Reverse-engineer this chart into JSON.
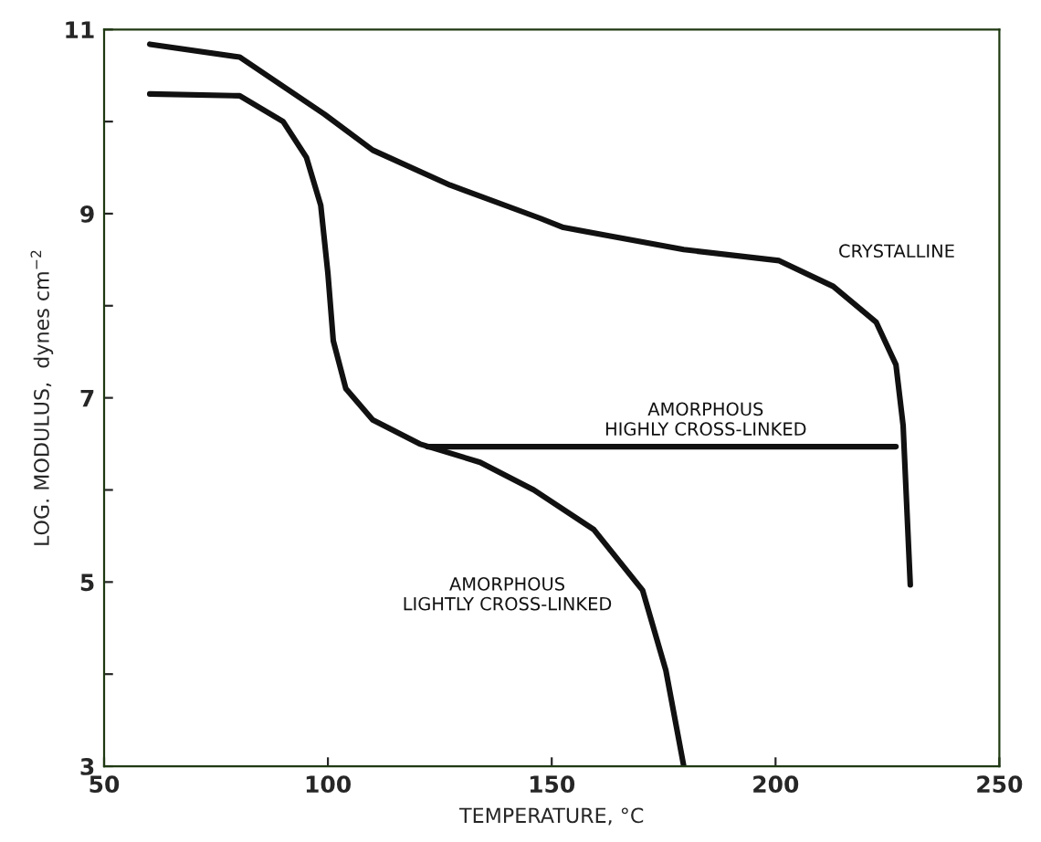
{
  "chart_data": {
    "type": "line",
    "xlabel": "TEMPERATURE, °C",
    "ylabel": "LOG. MODULUS,  dynes cm$^{−2}$",
    "series": [
      {
        "name": "CRYSTALLINE",
        "color": "#111111",
        "x": [
          60.2,
          80.3,
          99.2,
          110,
          127.3,
          147.4,
          152.6,
          179.5,
          200.8,
          212.9,
          222.5,
          226.9,
          228.5,
          230.1
        ],
        "values": [
          10.84,
          10.7,
          10.08,
          9.69,
          9.31,
          8.95,
          8.85,
          8.61,
          8.49,
          8.21,
          7.82,
          7.36,
          6.7,
          4.97
        ]
      },
      {
        "name": "AMORPHOUS\nHIGHLY CROSS-LINKED",
        "color": "#111111",
        "x": [
          122.2,
          226.9
        ],
        "values": [
          6.47,
          6.47
        ]
      },
      {
        "name": "AMORPHOUS\nLIGHTLY CROSS-LINKED",
        "color": "#111111",
        "x": [
          60.2,
          80.3,
          90,
          95.2,
          98.4,
          100,
          101.2,
          104,
          110,
          120.5,
          134,
          146,
          159.4,
          170.3,
          175.5,
          179.5
        ],
        "values": [
          10.3,
          10.28,
          10.0,
          9.61,
          9.09,
          8.35,
          7.62,
          7.1,
          6.76,
          6.5,
          6.3,
          6.0,
          5.57,
          4.91,
          4.04,
          3.0
        ]
      }
    ],
    "xlim": [
      50,
      250
    ],
    "ylim": [
      3,
      11
    ],
    "xticks": [
      50,
      100,
      150,
      200,
      250
    ],
    "yticks": [
      3,
      {
        "value": 4,
        "label": null
      },
      5,
      {
        "value": 6,
        "label": null
      },
      7,
      {
        "value": 8,
        "label": null
      },
      9,
      {
        "value": 10,
        "label": null
      },
      11
    ],
    "grid": false,
    "legend": false,
    "marker": "none",
    "line_style": "solid"
  }
}
